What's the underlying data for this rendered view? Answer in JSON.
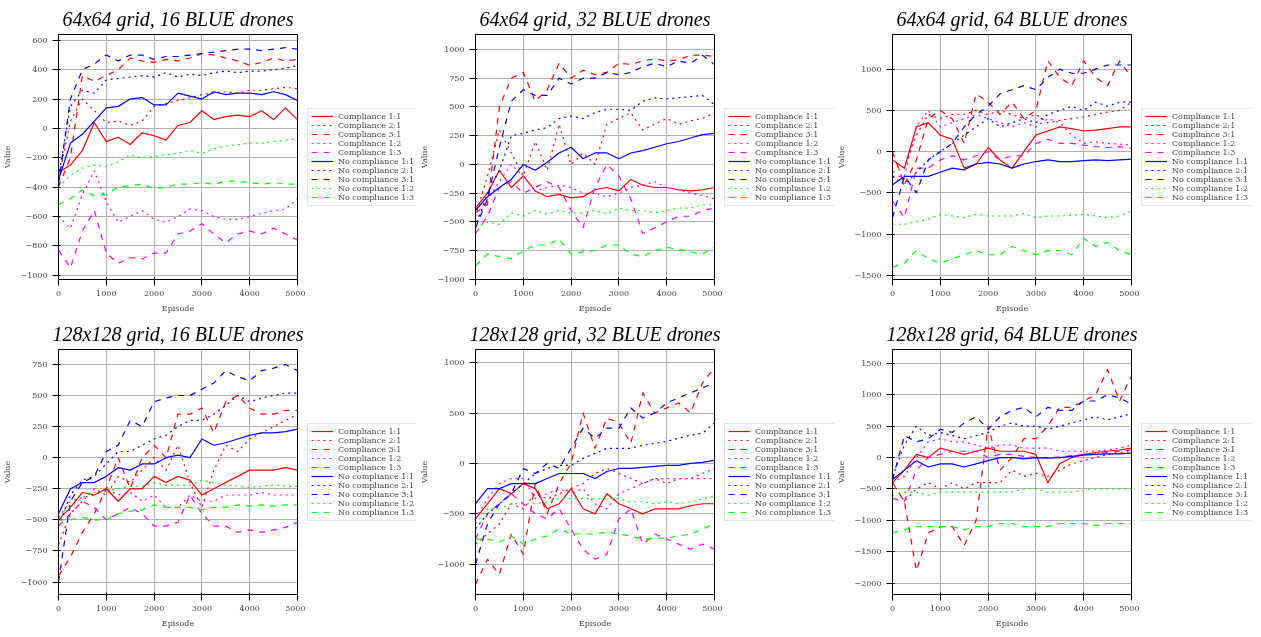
{
  "chart_data": [
    {
      "type": "line",
      "title": "64x64 grid, 16 BLUE drones",
      "xlabel": "Episode",
      "ylabel": "Value",
      "legend": "right",
      "grid": true,
      "xlim": [
        0,
        5000
      ],
      "xticks": [
        0,
        1000,
        2000,
        3000,
        4000,
        5000
      ],
      "ylim": [
        -1030,
        640
      ],
      "yticks": [
        -1000,
        -800,
        -600,
        -400,
        -200,
        0,
        200,
        400,
        600
      ],
      "x": [
        0,
        250,
        500,
        750,
        1000,
        1250,
        1500,
        1750,
        2000,
        2250,
        2500,
        2750,
        3000,
        3250,
        3500,
        3750,
        4000,
        4250,
        4500,
        4750,
        5000
      ],
      "series": [
        {
          "name": "Compliance 1:1",
          "color": "#ff0000",
          "line_style": "solid",
          "values": [
            -300,
            -250,
            -150,
            40,
            -90,
            -60,
            -110,
            -30,
            -50,
            -80,
            20,
            40,
            120,
            60,
            80,
            90,
            80,
            120,
            60,
            140,
            60
          ]
        },
        {
          "name": "Compliance 2:1",
          "color": "#ff0000",
          "line_style": "dotted",
          "values": [
            -350,
            50,
            200,
            120,
            40,
            50,
            20,
            50,
            150,
            170,
            190,
            210,
            230,
            240,
            250,
            240,
            260,
            260,
            270,
            280,
            270
          ]
        },
        {
          "name": "Compliance 3:1",
          "color": "#ff0000",
          "line_style": "dashed",
          "values": [
            -400,
            -200,
            360,
            320,
            360,
            400,
            480,
            460,
            450,
            470,
            460,
            480,
            510,
            500,
            480,
            460,
            430,
            450,
            480,
            460,
            470
          ]
        },
        {
          "name": "Compliance 1:2",
          "color": "#ff00ff",
          "line_style": "dotted",
          "values": [
            -600,
            -680,
            -450,
            -290,
            -500,
            -640,
            -600,
            -560,
            -620,
            -640,
            -600,
            -550,
            -560,
            -600,
            -620,
            -620,
            -600,
            -580,
            -560,
            -550,
            -480
          ]
        },
        {
          "name": "Compliance 1:3",
          "color": "#ff00ff",
          "line_style": "dashed",
          "values": [
            -830,
            -950,
            -700,
            -560,
            -850,
            -920,
            -880,
            -890,
            -850,
            -850,
            -720,
            -700,
            -650,
            -720,
            -780,
            -720,
            -700,
            -720,
            -680,
            -720,
            -760
          ]
        },
        {
          "name": "No compliance 1:1",
          "color": "#0000ff",
          "line_style": "solid",
          "values": [
            -350,
            -100,
            -40,
            50,
            140,
            150,
            200,
            210,
            160,
            160,
            240,
            220,
            200,
            250,
            230,
            240,
            240,
            230,
            250,
            230,
            190
          ]
        },
        {
          "name": "No compliance 2:1",
          "color": "#0000ff",
          "line_style": "dotted",
          "values": [
            -330,
            150,
            260,
            240,
            330,
            340,
            350,
            360,
            350,
            380,
            350,
            370,
            360,
            380,
            390,
            380,
            390,
            390,
            400,
            410,
            430
          ]
        },
        {
          "name": "No compliance 3:1",
          "color": "#0000ff",
          "line_style": "dashed",
          "values": [
            -380,
            200,
            400,
            440,
            500,
            460,
            500,
            500,
            470,
            490,
            490,
            500,
            510,
            520,
            530,
            540,
            540,
            530,
            540,
            550,
            540
          ]
        },
        {
          "name": "No compliance 1:2",
          "color": "#00ff00",
          "line_style": "dotted",
          "values": [
            -400,
            -320,
            -270,
            -250,
            -260,
            -230,
            -180,
            -200,
            -190,
            -180,
            -170,
            -150,
            -170,
            -140,
            -120,
            -110,
            -100,
            -100,
            -90,
            -80,
            -70
          ]
        },
        {
          "name": "No compliance 1:3",
          "color": "#00ff00",
          "line_style": "dashed",
          "values": [
            -520,
            -480,
            -420,
            -460,
            -450,
            -400,
            -390,
            -380,
            -410,
            -400,
            -380,
            -380,
            -370,
            -380,
            -360,
            -360,
            -370,
            -380,
            -370,
            -380,
            -380
          ]
        }
      ]
    },
    {
      "type": "line",
      "title": "64x64 grid, 32 BLUE drones",
      "xlabel": "Episode",
      "ylabel": "Value",
      "legend": "right",
      "grid": true,
      "xlim": [
        0,
        5000
      ],
      "xticks": [
        0,
        1000,
        2000,
        3000,
        4000,
        5000
      ],
      "ylim": [
        -1000,
        1130
      ],
      "yticks": [
        -1000,
        -750,
        -500,
        -250,
        0,
        250,
        500,
        750,
        1000
      ],
      "x": [
        0,
        250,
        500,
        750,
        1000,
        1250,
        1500,
        1750,
        2000,
        2250,
        2500,
        2750,
        3000,
        3250,
        3500,
        3750,
        4000,
        4250,
        4500,
        4750,
        5000
      ],
      "series": [
        {
          "name": "Compliance 1:1",
          "color": "#ff0000",
          "line_style": "solid",
          "values": [
            -380,
            -250,
            -50,
            -200,
            -100,
            -230,
            -280,
            -260,
            -290,
            -280,
            -220,
            -200,
            -230,
            -130,
            -180,
            -200,
            -200,
            -220,
            -230,
            -220,
            -200
          ]
        },
        {
          "name": "Compliance 2:1",
          "color": "#ff0000",
          "line_style": "dotted",
          "values": [
            -450,
            -100,
            300,
            100,
            -100,
            200,
            -50,
            350,
            0,
            100,
            0,
            350,
            400,
            450,
            300,
            350,
            400,
            350,
            380,
            400,
            450
          ]
        },
        {
          "name": "Compliance 3:1",
          "color": "#ff0000",
          "line_style": "dashed",
          "values": [
            -420,
            -350,
            500,
            750,
            800,
            550,
            650,
            880,
            750,
            820,
            780,
            800,
            880,
            870,
            900,
            920,
            900,
            910,
            950,
            950,
            940
          ]
        },
        {
          "name": "Compliance 1:2",
          "color": "#ff00ff",
          "line_style": "dotted",
          "values": [
            -500,
            -300,
            -150,
            0,
            -100,
            -230,
            -200,
            -180,
            -200,
            -250,
            -250,
            -280,
            -250,
            -200,
            -180,
            -150,
            -200,
            -220,
            -250,
            -270,
            -300
          ]
        },
        {
          "name": "Compliance 1:3",
          "color": "#ff00ff",
          "line_style": "dashed",
          "values": [
            -600,
            -450,
            -200,
            -150,
            -250,
            -200,
            -150,
            -200,
            -400,
            -550,
            -200,
            0,
            -100,
            -300,
            -600,
            -550,
            -500,
            -450,
            -450,
            -400,
            -380
          ]
        },
        {
          "name": "No compliance 1:1",
          "color": "#0000ff",
          "line_style": "solid",
          "values": [
            -400,
            -280,
            -200,
            -130,
            0,
            -50,
            20,
            100,
            150,
            50,
            100,
            100,
            50,
            100,
            120,
            150,
            180,
            200,
            230,
            260,
            270
          ]
        },
        {
          "name": "No compliance 2:1",
          "color": "#0000ff",
          "line_style": "dotted",
          "values": [
            -550,
            -250,
            -50,
            250,
            270,
            300,
            320,
            400,
            420,
            400,
            450,
            480,
            480,
            470,
            550,
            580,
            570,
            580,
            590,
            600,
            520
          ]
        },
        {
          "name": "No compliance 3:1",
          "color": "#0000ff",
          "line_style": "dashed",
          "values": [
            -550,
            -300,
            150,
            550,
            650,
            600,
            600,
            750,
            700,
            750,
            750,
            800,
            780,
            800,
            850,
            880,
            850,
            900,
            880,
            950,
            870
          ]
        },
        {
          "name": "No compliance 1:2",
          "color": "#00ff00",
          "line_style": "dotted",
          "values": [
            -550,
            -500,
            -520,
            -420,
            -450,
            -400,
            -430,
            -400,
            -420,
            -420,
            -400,
            -430,
            -380,
            -400,
            -400,
            -420,
            -400,
            -380,
            -380,
            -350,
            -350
          ]
        },
        {
          "name": "No compliance 1:3",
          "color": "#00ff00",
          "line_style": "dashed",
          "values": [
            -880,
            -780,
            -800,
            -820,
            -750,
            -700,
            -700,
            -650,
            -780,
            -760,
            -750,
            -700,
            -700,
            -780,
            -800,
            -750,
            -720,
            -740,
            -760,
            -780,
            -720
          ]
        }
      ]
    },
    {
      "type": "line",
      "title": "64x64 grid, 64 BLUE drones",
      "xlabel": "Episode",
      "ylabel": "Value",
      "legend": "right",
      "grid": true,
      "xlim": [
        0,
        5000
      ],
      "xticks": [
        0,
        1000,
        2000,
        3000,
        4000,
        5000
      ],
      "ylim": [
        -1550,
        1420
      ],
      "yticks": [
        -1500,
        -1000,
        -500,
        0,
        500,
        1000
      ],
      "x": [
        0,
        250,
        500,
        750,
        1000,
        1250,
        1500,
        1750,
        2000,
        2250,
        2500,
        2750,
        3000,
        3250,
        3500,
        3750,
        4000,
        4250,
        4500,
        4750,
        5000
      ],
      "series": [
        {
          "name": "Compliance 1:1",
          "color": "#ff0000",
          "line_style": "solid",
          "values": [
            -100,
            -200,
            300,
            350,
            200,
            150,
            -200,
            -150,
            50,
            -100,
            -200,
            0,
            200,
            250,
            300,
            280,
            250,
            260,
            280,
            300,
            300
          ]
        },
        {
          "name": "Compliance 2:1",
          "color": "#ff0000",
          "line_style": "dotted",
          "values": [
            -250,
            -200,
            200,
            450,
            400,
            450,
            450,
            500,
            450,
            500,
            450,
            400,
            450,
            350,
            380,
            400,
            420,
            450,
            480,
            500,
            600
          ]
        },
        {
          "name": "Compliance 3:1",
          "color": "#ff0000",
          "line_style": "dashed",
          "values": [
            0,
            -400,
            -100,
            400,
            500,
            400,
            100,
            700,
            600,
            450,
            600,
            400,
            500,
            1100,
            900,
            800,
            1100,
            900,
            800,
            1100,
            900
          ]
        },
        {
          "name": "Compliance 1:2",
          "color": "#ff00ff",
          "line_style": "dotted",
          "values": [
            -300,
            -300,
            300,
            500,
            300,
            350,
            400,
            450,
            400,
            350,
            300,
            350,
            300,
            400,
            350,
            200,
            100,
            120,
            100,
            90,
            80
          ]
        },
        {
          "name": "Compliance 1:3",
          "color": "#ff00ff",
          "line_style": "dashed",
          "values": [
            -600,
            -800,
            -200,
            -200,
            -100,
            -50,
            -100,
            -50,
            0,
            -100,
            -50,
            -50,
            100,
            150,
            100,
            100,
            80,
            60,
            50,
            60,
            40
          ]
        },
        {
          "name": "No compliance 1:1",
          "color": "#0000ff",
          "line_style": "solid",
          "values": [
            -400,
            -300,
            -300,
            -300,
            -250,
            -200,
            -220,
            -150,
            -130,
            -150,
            -200,
            -150,
            -120,
            -100,
            -120,
            -120,
            -110,
            -100,
            -110,
            -100,
            -90
          ]
        },
        {
          "name": "No compliance 2:1",
          "color": "#0000ff",
          "line_style": "dotted",
          "values": [
            -300,
            -400,
            -250,
            -100,
            0,
            100,
            200,
            300,
            400,
            300,
            350,
            400,
            350,
            450,
            500,
            550,
            500,
            600,
            550,
            600,
            600
          ]
        },
        {
          "name": "No compliance 3:1",
          "color": "#0000ff",
          "line_style": "dashed",
          "values": [
            -800,
            -300,
            -500,
            -100,
            0,
            100,
            300,
            450,
            550,
            700,
            750,
            800,
            750,
            900,
            1000,
            950,
            950,
            1000,
            1050,
            1050,
            1050
          ]
        },
        {
          "name": "No compliance 1:2",
          "color": "#00ff00",
          "line_style": "dotted",
          "values": [
            -880,
            -880,
            -850,
            -820,
            -760,
            -780,
            -800,
            -760,
            -780,
            -780,
            -780,
            -750,
            -800,
            -780,
            -780,
            -770,
            -760,
            -780,
            -800,
            -780,
            -720
          ]
        },
        {
          "name": "No compliance 1:3",
          "color": "#00ff00",
          "line_style": "dashed",
          "values": [
            -1400,
            -1350,
            -1200,
            -1300,
            -1350,
            -1300,
            -1250,
            -1200,
            -1250,
            -1250,
            -1150,
            -1200,
            -1250,
            -1200,
            -1200,
            -1250,
            -1050,
            -1150,
            -1100,
            -1200,
            -1250
          ]
        }
      ]
    },
    {
      "type": "line",
      "title": "128x128 grid, 16 BLUE drones",
      "xlabel": "Episode",
      "ylabel": "Value",
      "legend": "right",
      "grid": true,
      "xlim": [
        0,
        5000
      ],
      "xticks": [
        0,
        1000,
        2000,
        3000,
        4000,
        5000
      ],
      "ylim": [
        -1100,
        870
      ],
      "yticks": [
        -1000,
        -750,
        -500,
        -250,
        0,
        250,
        500,
        750
      ],
      "x": [
        0,
        250,
        500,
        750,
        1000,
        1250,
        1500,
        1750,
        2000,
        2250,
        2500,
        2750,
        3000,
        3250,
        3500,
        3750,
        4000,
        4250,
        4500,
        4750,
        5000
      ],
      "series": [
        {
          "name": "Compliance 1:1",
          "color": "#ff0000",
          "line_style": "solid",
          "values": [
            -500,
            -400,
            -280,
            -300,
            -250,
            -350,
            -250,
            -250,
            -150,
            -200,
            -150,
            -180,
            -300,
            -250,
            -200,
            -150,
            -100,
            -100,
            -100,
            -80,
            -100
          ]
        },
        {
          "name": "Compliance 2:1",
          "color": "#ff0000",
          "line_style": "dotted",
          "values": [
            -700,
            -450,
            -350,
            -250,
            -300,
            -150,
            -200,
            -100,
            0,
            -100,
            100,
            -200,
            -400,
            -100,
            100,
            50,
            150,
            200,
            250,
            300,
            350
          ]
        },
        {
          "name": "Compliance 3:1",
          "color": "#ff0000",
          "line_style": "dashed",
          "values": [
            -950,
            -800,
            -600,
            -450,
            -250,
            0,
            -250,
            0,
            100,
            0,
            350,
            350,
            400,
            200,
            450,
            500,
            400,
            350,
            350,
            380,
            380
          ]
        },
        {
          "name": "Compliance 1:2",
          "color": "#ff00ff",
          "line_style": "dotted",
          "values": [
            -480,
            -350,
            -320,
            -300,
            -250,
            -300,
            -280,
            -350,
            -300,
            -400,
            -400,
            -300,
            -350,
            -350,
            -300,
            -300,
            -300,
            -280,
            -300,
            -300,
            -300
          ]
        },
        {
          "name": "Compliance 1:3",
          "color": "#ff00ff",
          "line_style": "dashed",
          "values": [
            -550,
            -450,
            -350,
            -400,
            -500,
            -450,
            -400,
            -450,
            -550,
            -550,
            -520,
            -300,
            -450,
            -550,
            -550,
            -600,
            -580,
            -600,
            -580,
            -560,
            -520
          ]
        },
        {
          "name": "No compliance 1:1",
          "color": "#0000ff",
          "line_style": "solid",
          "values": [
            -450,
            -250,
            -200,
            -200,
            -150,
            -80,
            -100,
            -50,
            -50,
            0,
            20,
            0,
            150,
            100,
            120,
            150,
            180,
            200,
            200,
            210,
            230
          ]
        },
        {
          "name": "No compliance 2:1",
          "color": "#0000ff",
          "line_style": "dotted",
          "values": [
            -550,
            -300,
            -180,
            -150,
            -50,
            50,
            50,
            100,
            150,
            180,
            250,
            300,
            300,
            350,
            420,
            500,
            450,
            480,
            500,
            520,
            520
          ]
        },
        {
          "name": "No compliance 3:1",
          "color": "#0000ff",
          "line_style": "dashed",
          "values": [
            -1000,
            -350,
            -200,
            -150,
            50,
            100,
            300,
            250,
            450,
            480,
            500,
            500,
            550,
            600,
            700,
            650,
            620,
            700,
            720,
            750,
            700
          ]
        },
        {
          "name": "No compliance 1:2",
          "color": "#00ff00",
          "line_style": "dotted",
          "values": [
            -450,
            -400,
            -320,
            -280,
            -270,
            -250,
            -230,
            -230,
            -200,
            -220,
            -220,
            -220,
            -180,
            -200,
            -220,
            -230,
            -240,
            -230,
            -220,
            -230,
            -230
          ]
        },
        {
          "name": "No compliance 1:3",
          "color": "#00ff00",
          "line_style": "dashed",
          "values": [
            -500,
            -500,
            -480,
            -500,
            -500,
            -450,
            -430,
            -420,
            -380,
            -400,
            -400,
            -400,
            -420,
            -400,
            -400,
            -380,
            -390,
            -380,
            -390,
            -380,
            -380
          ]
        }
      ]
    },
    {
      "type": "line",
      "title": "128x128 grid, 32 BLUE drones",
      "xlabel": "Episode",
      "ylabel": "Value",
      "legend": "right",
      "grid": true,
      "xlim": [
        0,
        5000
      ],
      "xticks": [
        0,
        1000,
        2000,
        3000,
        4000,
        5000
      ],
      "ylim": [
        -1300,
        1130
      ],
      "yticks": [
        -1000,
        -500,
        0,
        500,
        1000
      ],
      "x": [
        0,
        250,
        500,
        750,
        1000,
        1250,
        1500,
        1750,
        2000,
        2250,
        2500,
        2750,
        3000,
        3250,
        3500,
        3750,
        4000,
        4250,
        4500,
        4750,
        5000
      ],
      "series": [
        {
          "name": "Compliance 1:1",
          "color": "#ff0000",
          "line_style": "solid",
          "values": [
            -550,
            -400,
            -250,
            -300,
            -200,
            -250,
            -450,
            -400,
            -250,
            -450,
            -500,
            -300,
            -400,
            -450,
            -500,
            -450,
            -450,
            -450,
            -420,
            -400,
            -400
          ]
        },
        {
          "name": "Compliance 2:1",
          "color": "#ff0000",
          "line_style": "dotted",
          "values": [
            -800,
            -700,
            -600,
            -400,
            -450,
            -300,
            -350,
            -300,
            -250,
            -200,
            -100,
            -50,
            -100,
            -150,
            -200,
            -150,
            -200,
            -150,
            -150,
            -100,
            -50
          ]
        },
        {
          "name": "Compliance 3:1",
          "color": "#ff0000",
          "line_style": "dashed",
          "values": [
            -1200,
            -950,
            -1100,
            -700,
            -900,
            -200,
            -500,
            -200,
            0,
            500,
            150,
            450,
            400,
            200,
            700,
            500,
            550,
            600,
            500,
            800,
            950
          ]
        },
        {
          "name": "Compliance 1:2",
          "color": "#ff00ff",
          "line_style": "dotted",
          "values": [
            -550,
            -350,
            -200,
            -150,
            -150,
            -350,
            -300,
            -250,
            -300,
            -250,
            -400,
            -450,
            -300,
            -250,
            -200,
            -150,
            -150,
            -150,
            -150,
            -150,
            -150
          ]
        },
        {
          "name": "Compliance 1:3",
          "color": "#ff00ff",
          "line_style": "dashed",
          "values": [
            -750,
            -500,
            -400,
            -300,
            -400,
            -500,
            -550,
            -450,
            -650,
            -850,
            -950,
            -900,
            -550,
            -450,
            -800,
            -700,
            -750,
            -800,
            -850,
            -800,
            -850
          ]
        },
        {
          "name": "No compliance 1:1",
          "color": "#0000ff",
          "line_style": "solid",
          "values": [
            -400,
            -250,
            -250,
            -200,
            -200,
            -200,
            -150,
            -100,
            -100,
            -100,
            -150,
            -80,
            -50,
            -50,
            -40,
            -30,
            -20,
            -20,
            0,
            10,
            30
          ]
        },
        {
          "name": "No compliance 2:1",
          "color": "#0000ff",
          "line_style": "dotted",
          "values": [
            -650,
            -500,
            -400,
            -300,
            -200,
            -100,
            -50,
            -20,
            -20,
            50,
            100,
            150,
            150,
            150,
            180,
            200,
            220,
            250,
            280,
            300,
            400
          ]
        },
        {
          "name": "No compliance 3:1",
          "color": "#0000ff",
          "line_style": "dashed",
          "values": [
            -1000,
            -600,
            -400,
            -300,
            -50,
            -100,
            0,
            -50,
            150,
            350,
            250,
            350,
            350,
            550,
            450,
            500,
            600,
            650,
            700,
            750,
            800
          ]
        },
        {
          "name": "No compliance 1:2",
          "color": "#00ff00",
          "line_style": "dotted",
          "values": [
            -600,
            -450,
            -450,
            -400,
            -400,
            -400,
            -380,
            -350,
            -350,
            -350,
            -350,
            -350,
            -350,
            -380,
            -380,
            -400,
            -380,
            -400,
            -380,
            -350,
            -320
          ]
        },
        {
          "name": "No compliance 1:3",
          "color": "#00ff00",
          "line_style": "dashed",
          "values": [
            -750,
            -750,
            -780,
            -720,
            -800,
            -750,
            -720,
            -650,
            -700,
            -700,
            -700,
            -680,
            -700,
            -720,
            -750,
            -740,
            -740,
            -720,
            -700,
            -650,
            -600
          ]
        }
      ]
    },
    {
      "type": "line",
      "title": "128x128 grid, 64 BLUE drones",
      "xlabel": "Episode",
      "ylabel": "Value",
      "legend": "right",
      "grid": true,
      "xlim": [
        0,
        5000
      ],
      "xticks": [
        0,
        1000,
        2000,
        3000,
        4000,
        5000
      ],
      "ylim": [
        -2180,
        1720
      ],
      "yticks": [
        -2000,
        -1500,
        -1000,
        -500,
        0,
        500,
        1000,
        1500
      ],
      "x": [
        0,
        250,
        500,
        750,
        1000,
        1250,
        1500,
        1750,
        2000,
        2250,
        2500,
        2750,
        3000,
        3250,
        3500,
        3750,
        4000,
        4250,
        4500,
        4750,
        5000
      ],
      "series": [
        {
          "name": "Compliance 1:1",
          "color": "#ff0000",
          "line_style": "solid",
          "values": [
            -400,
            -200,
            50,
            0,
            150,
            100,
            50,
            100,
            150,
            100,
            100,
            100,
            50,
            -400,
            -100,
            0,
            50,
            80,
            100,
            120,
            150
          ]
        },
        {
          "name": "Compliance 2:1",
          "color": "#ff0000",
          "line_style": "dotted",
          "values": [
            -400,
            -700,
            -500,
            -400,
            -500,
            -400,
            -500,
            -400,
            -400,
            -400,
            -200,
            -300,
            -250,
            -300,
            -200,
            -100,
            -50,
            0,
            50,
            80,
            100
          ]
        },
        {
          "name": "Compliance 3:1",
          "color": "#ff0000",
          "line_style": "dashed",
          "values": [
            -400,
            -700,
            -1800,
            -1200,
            -1100,
            -1100,
            -1400,
            -1000,
            500,
            -200,
            0,
            300,
            300,
            500,
            800,
            800,
            900,
            1000,
            1400,
            900,
            1300
          ]
        },
        {
          "name": "Compliance 1:2",
          "color": "#ff00ff",
          "line_style": "dotted",
          "values": [
            -400,
            -300,
            0,
            250,
            300,
            250,
            250,
            200,
            150,
            200,
            200,
            150,
            150,
            150,
            100,
            100,
            100,
            100,
            120,
            150,
            200
          ]
        },
        {
          "name": "Compliance 1:3",
          "color": "#ff00ff",
          "line_style": "dashed",
          "values": [
            -650,
            -700,
            -200,
            0,
            50,
            100,
            100,
            100,
            0,
            50,
            50,
            20,
            0,
            0,
            10,
            30,
            50,
            60,
            80,
            100,
            120
          ]
        },
        {
          "name": "No compliance 1:1",
          "color": "#0000ff",
          "line_style": "solid",
          "values": [
            -350,
            -200,
            -50,
            -150,
            -100,
            -100,
            -150,
            -100,
            -50,
            0,
            0,
            -20,
            0,
            -10,
            0,
            20,
            40,
            50,
            60,
            60,
            70
          ]
        },
        {
          "name": "No compliance 2:1",
          "color": "#0000ff",
          "line_style": "dotted",
          "values": [
            -300,
            200,
            500,
            350,
            400,
            350,
            300,
            350,
            400,
            500,
            550,
            500,
            500,
            450,
            500,
            550,
            600,
            650,
            600,
            650,
            700
          ]
        },
        {
          "name": "No compliance 3:1",
          "color": "#0000ff",
          "line_style": "dashed",
          "values": [
            -350,
            350,
            250,
            300,
            450,
            400,
            550,
            650,
            450,
            650,
            750,
            800,
            650,
            800,
            750,
            750,
            900,
            900,
            1000,
            950,
            850
          ]
        },
        {
          "name": "No compliance 1:2",
          "color": "#00ff00",
          "line_style": "dotted",
          "values": [
            -600,
            -550,
            -550,
            -600,
            -550,
            -550,
            -550,
            -550,
            -550,
            -550,
            -550,
            -500,
            -500,
            -550,
            -550,
            -550,
            -520,
            -500,
            -500,
            -500,
            -500
          ]
        },
        {
          "name": "No compliance 1:3",
          "color": "#00ff00",
          "line_style": "dashed",
          "values": [
            -1200,
            -1150,
            -1100,
            -1100,
            -1100,
            -1100,
            -1150,
            -1100,
            -1100,
            -1050,
            -1050,
            -1100,
            -1100,
            -1100,
            -1050,
            -1050,
            -1050,
            -1080,
            -1050,
            -1050,
            -1050
          ]
        }
      ]
    }
  ]
}
